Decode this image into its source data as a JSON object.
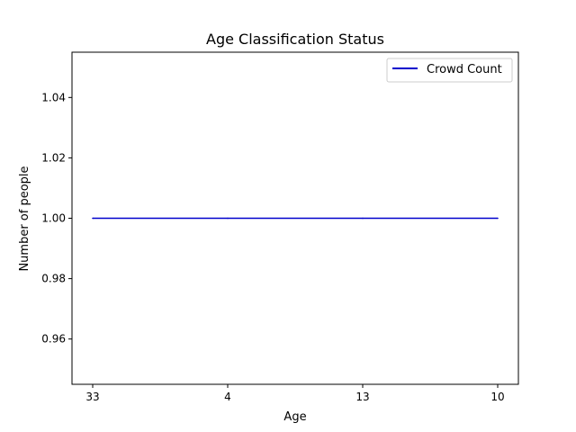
{
  "chart_data": {
    "type": "line",
    "title": "Age Classification Status",
    "xlabel": "Age",
    "ylabel": "Number of people",
    "categories": [
      "33",
      "4",
      "13",
      "10"
    ],
    "series": [
      {
        "name": "Crowd Count",
        "values": [
          1,
          1,
          1,
          1
        ],
        "color": "#0000cc"
      }
    ],
    "ylim": [
      0.945,
      1.055
    ],
    "yticks": [
      {
        "value": 0.96,
        "label": "0.96"
      },
      {
        "value": 0.98,
        "label": "0.98"
      },
      {
        "value": 1.0,
        "label": "1.00"
      },
      {
        "value": 1.02,
        "label": "1.02"
      },
      {
        "value": 1.04,
        "label": "1.04"
      }
    ],
    "grid": false,
    "legend_position": "top-right"
  }
}
